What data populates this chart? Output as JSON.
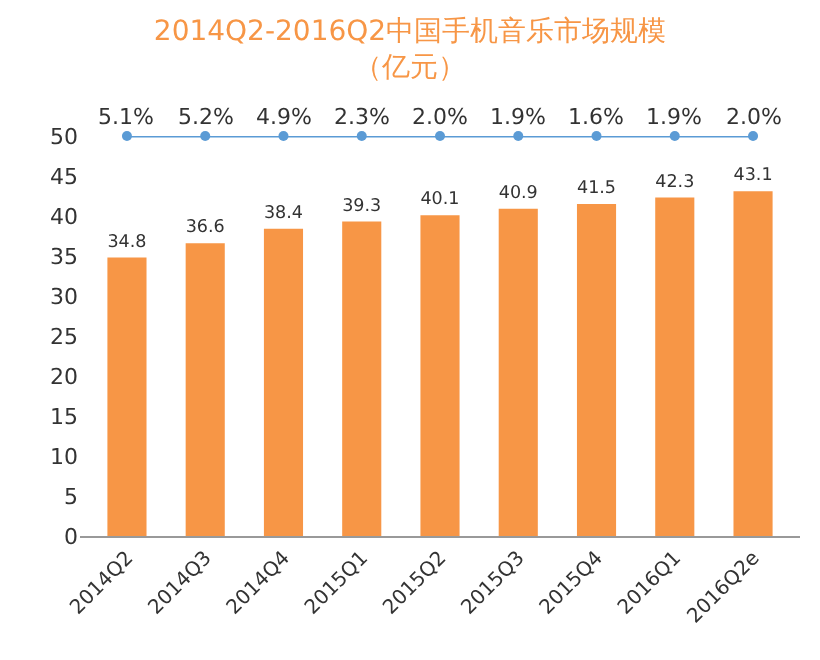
{
  "chart_data": {
    "type": "bar",
    "title": "2014Q2-2016Q2中国手机音乐市场规模",
    "subtitle": "（亿元）",
    "categories": [
      "2014Q2",
      "2014Q3",
      "2014Q4",
      "2015Q1",
      "2015Q2",
      "2015Q3",
      "2015Q4",
      "2016Q1",
      "2016Q2e"
    ],
    "series": [
      {
        "color": "#f79646",
        "values": [
          34.8,
          36.6,
          38.4,
          39.3,
          40.1,
          40.9,
          41.5,
          42.3,
          43.1
        ],
        "value_labels": [
          "34.8",
          "36.6",
          "38.4",
          "39.3",
          "40.1",
          "40.9",
          "41.5",
          "42.3",
          "43.1"
        ]
      },
      {
        "type": "line",
        "color": "#5b9bd5",
        "marker": "circle",
        "values": [
          50,
          50,
          50,
          50,
          50,
          50,
          50,
          50,
          50
        ]
      }
    ],
    "annotations": [
      {
        "text": "5.1%",
        "x": "2014Q2",
        "y": 50
      },
      {
        "text": "5.2%",
        "x": "2014Q3",
        "y": 50
      },
      {
        "text": "4.9%",
        "x": "2014Q4",
        "y": 50
      },
      {
        "text": "2.3%",
        "x": "2015Q1",
        "y": 50
      },
      {
        "text": "2.0%",
        "x": "2015Q2",
        "y": 50
      },
      {
        "text": "1.9%",
        "x": "2015Q3",
        "y": 50
      },
      {
        "text": "1.6%",
        "x": "2015Q4",
        "y": 50
      },
      {
        "text": "1.9%",
        "x": "2016Q1",
        "y": 50
      },
      {
        "text": "2.0%",
        "x": "2016Q2e",
        "y": 50
      }
    ],
    "ylim": [
      0,
      50
    ],
    "yticks": [
      0,
      5,
      10,
      15,
      20,
      25,
      30,
      35,
      40,
      45,
      50
    ],
    "grid": false,
    "legend": false
  }
}
